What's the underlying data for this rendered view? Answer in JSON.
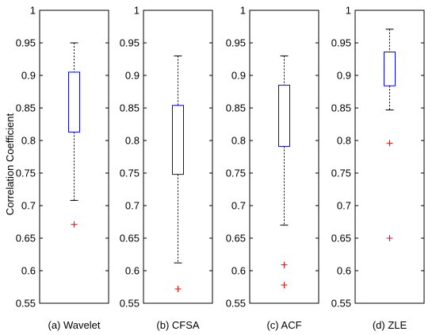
{
  "figure": {
    "ylabel": "Correlation Coefficient",
    "colors": {
      "box": "#0000ff",
      "median": "#ff0000",
      "whisker": "#000000",
      "outlier": "#ff0000",
      "frame": "#000000"
    }
  },
  "chart_data": [
    {
      "type": "box",
      "xlabel": "(a) Wavelet",
      "ylim": [
        0.55,
        1
      ],
      "yticks": [
        "0.55",
        "0.6",
        "0.65",
        "0.7",
        "0.75",
        "0.8",
        "0.85",
        "0.9",
        "0.95",
        "1"
      ],
      "box": {
        "whisker_low": 0.708,
        "q1": 0.813,
        "q3": 0.905,
        "whisker_high": 0.95
      },
      "outliers": [
        0.671
      ]
    },
    {
      "type": "box",
      "xlabel": "(b) CFSA",
      "ylim": [
        0.55,
        1
      ],
      "yticks": [
        "0.55",
        "0.6",
        "0.65",
        "0.7",
        "0.75",
        "0.8",
        "0.85",
        "0.9",
        "0.95",
        "1"
      ],
      "box": {
        "whisker_low": 0.612,
        "q1": 0.748,
        "q3": 0.854,
        "whisker_high": 0.93
      },
      "outliers": [
        0.572
      ]
    },
    {
      "type": "box",
      "xlabel": "(c) ACF",
      "ylim": [
        0.55,
        1
      ],
      "yticks": [
        "0.55",
        "0.6",
        "0.65",
        "0.7",
        "0.75",
        "0.8",
        "0.85",
        "0.9",
        "0.95",
        "1"
      ],
      "box": {
        "whisker_low": 0.67,
        "q1": 0.791,
        "q3": 0.885,
        "whisker_high": 0.93
      },
      "outliers": [
        0.609,
        0.578
      ]
    },
    {
      "type": "box",
      "xlabel": "(d) ZLE",
      "ylim": [
        0.55,
        1
      ],
      "yticks": [
        "0.55",
        "0.6",
        "0.65",
        "0.7",
        "0.75",
        "0.8",
        "0.85",
        "0.9",
        "0.95",
        "1"
      ],
      "box": {
        "whisker_low": 0.847,
        "q1": 0.884,
        "q3": 0.936,
        "whisker_high": 0.971
      },
      "outliers": [
        0.796,
        0.65
      ]
    }
  ]
}
